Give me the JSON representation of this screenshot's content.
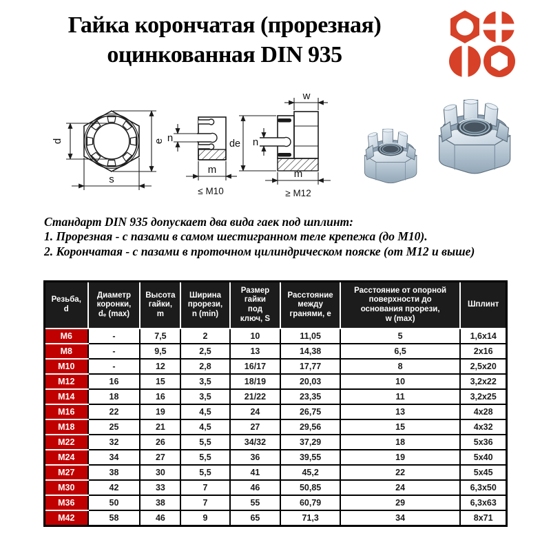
{
  "title": {
    "line1": "Гайка корончатая (прорезная)",
    "line2": "оцинкованная DIN 935"
  },
  "logo": {
    "icons": [
      "hex-nut",
      "cross-recess-screw",
      "slotted-screw",
      "hex-socket-nut"
    ]
  },
  "diagram": {
    "left": {
      "d": "d",
      "e": "e",
      "s": "s"
    },
    "middle": {
      "n": "n",
      "m": "m",
      "caption": "≤ М10"
    },
    "right": {
      "w": "w",
      "de": "de",
      "n": "n",
      "m": "m",
      "caption": "≥ М12"
    }
  },
  "description": {
    "intro": "Стандарт DIN 935 допускает два вида гаек под шплинт:",
    "item1": "1. Прорезная - с пазами в самом шестигранном теле крепежа (до М10).",
    "item2": "2. Корончатая - с пазами в проточном цилиндрическом пояске (от М12 и выше)"
  },
  "table": {
    "headers": [
      {
        "id": "thread",
        "lines": [
          "Резьба,",
          "d"
        ]
      },
      {
        "id": "crown-diameter",
        "lines": [
          "Диаметр",
          "коронки,",
          "dₑ (max)"
        ]
      },
      {
        "id": "nut-height",
        "lines": [
          "Высота",
          "гайки,",
          "m"
        ]
      },
      {
        "id": "slot-width",
        "lines": [
          "Ширина",
          "прорези,",
          "n (min)"
        ]
      },
      {
        "id": "wrench-size",
        "lines": [
          "Размер",
          "гайки",
          "под",
          "ключ, S"
        ]
      },
      {
        "id": "corner-dist",
        "lines": [
          "Расстояние",
          "между",
          "гранями, e"
        ]
      },
      {
        "id": "w-distance",
        "lines": [
          "Расстояние от опорной",
          "поверхности до",
          "основания прорези,",
          "w (max)"
        ]
      },
      {
        "id": "cotter-pin",
        "lines": [
          "Шплинт"
        ]
      }
    ],
    "rows": [
      [
        "М6",
        "-",
        "7,5",
        "2",
        "10",
        "11,05",
        "5",
        "1,6x14"
      ],
      [
        "М8",
        "-",
        "9,5",
        "2,5",
        "13",
        "14,38",
        "6,5",
        "2x16"
      ],
      [
        "М10",
        "-",
        "12",
        "2,8",
        "16/17",
        "17,77",
        "8",
        "2,5x20"
      ],
      [
        "М12",
        "16",
        "15",
        "3,5",
        "18/19",
        "20,03",
        "10",
        "3,2x22"
      ],
      [
        "М14",
        "18",
        "16",
        "3,5",
        "21/22",
        "23,35",
        "11",
        "3,2x25"
      ],
      [
        "М16",
        "22",
        "19",
        "4,5",
        "24",
        "26,75",
        "13",
        "4x28"
      ],
      [
        "М18",
        "25",
        "21",
        "4,5",
        "27",
        "29,56",
        "15",
        "4x32"
      ],
      [
        "М22",
        "32",
        "26",
        "5,5",
        "34/32",
        "37,29",
        "18",
        "5x36"
      ],
      [
        "М24",
        "34",
        "27",
        "5,5",
        "36",
        "39,55",
        "19",
        "5x40"
      ],
      [
        "М27",
        "38",
        "30",
        "5,5",
        "41",
        "45,2",
        "22",
        "5x45"
      ],
      [
        "М30",
        "42",
        "33",
        "7",
        "46",
        "50,85",
        "24",
        "6,3x50"
      ],
      [
        "М36",
        "50",
        "38",
        "7",
        "55",
        "60,79",
        "29",
        "6,3x63"
      ],
      [
        "М42",
        "58",
        "46",
        "9",
        "65",
        "71,3",
        "34",
        "8x71"
      ]
    ]
  },
  "colors": {
    "red_cell": "#c00000",
    "logo_red": "#d64127",
    "header_bg": "#1c1c1c",
    "steel_light": "#dfe7ee",
    "steel_dark": "#8fa3b4"
  }
}
